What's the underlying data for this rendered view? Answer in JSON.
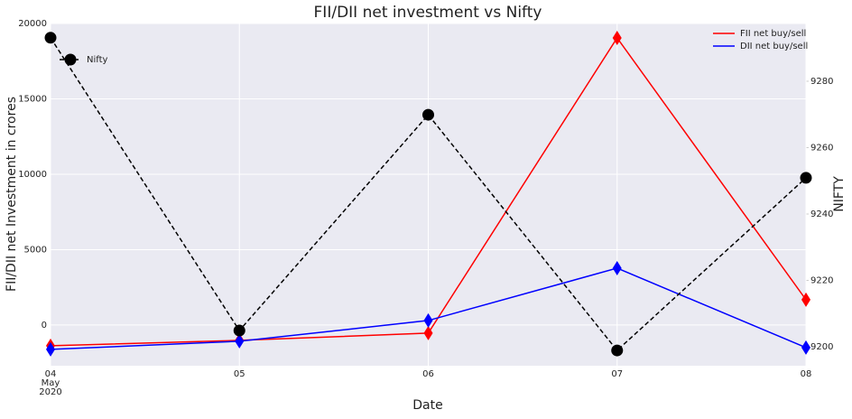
{
  "chart_data": {
    "type": "line",
    "title": "FII/DII net investment vs Nifty",
    "x_label": "Date",
    "y_label": "FII/DII net Investment in crores",
    "y2_label": "NIFTY",
    "categories": [
      "04",
      "05",
      "06",
      "07",
      "08"
    ],
    "x_month": "May",
    "x_year": "2020",
    "ylim": [
      -2700,
      20000
    ],
    "yticks": [
      0,
      5000,
      10000,
      15000,
      20000
    ],
    "y2lim": [
      9194.3,
      9297.4
    ],
    "y2ticks": [
      9200,
      9220,
      9240,
      9260,
      9280
    ],
    "grid": true,
    "legend_loc": "upper right",
    "legend2_loc": "upper left",
    "series": [
      {
        "name": "FII net buy/sell",
        "color": "#ff0000",
        "marker": "diamond",
        "dash": false,
        "values": [
          -1377,
          -1018,
          -539,
          19042,
          1677
        ]
      },
      {
        "name": "DII net buy/sell",
        "color": "#0000ff",
        "marker": "diamond",
        "dash": false,
        "values": [
          -1617,
          -1078,
          299,
          3772,
          -1497
        ]
      },
      {
        "name": "Nifty",
        "color": "#000000",
        "marker": "circle",
        "dash": true,
        "axis": "y2",
        "values": [
          9293.1,
          9204.9,
          9269.9,
          9198.9,
          9250.9
        ]
      }
    ]
  }
}
